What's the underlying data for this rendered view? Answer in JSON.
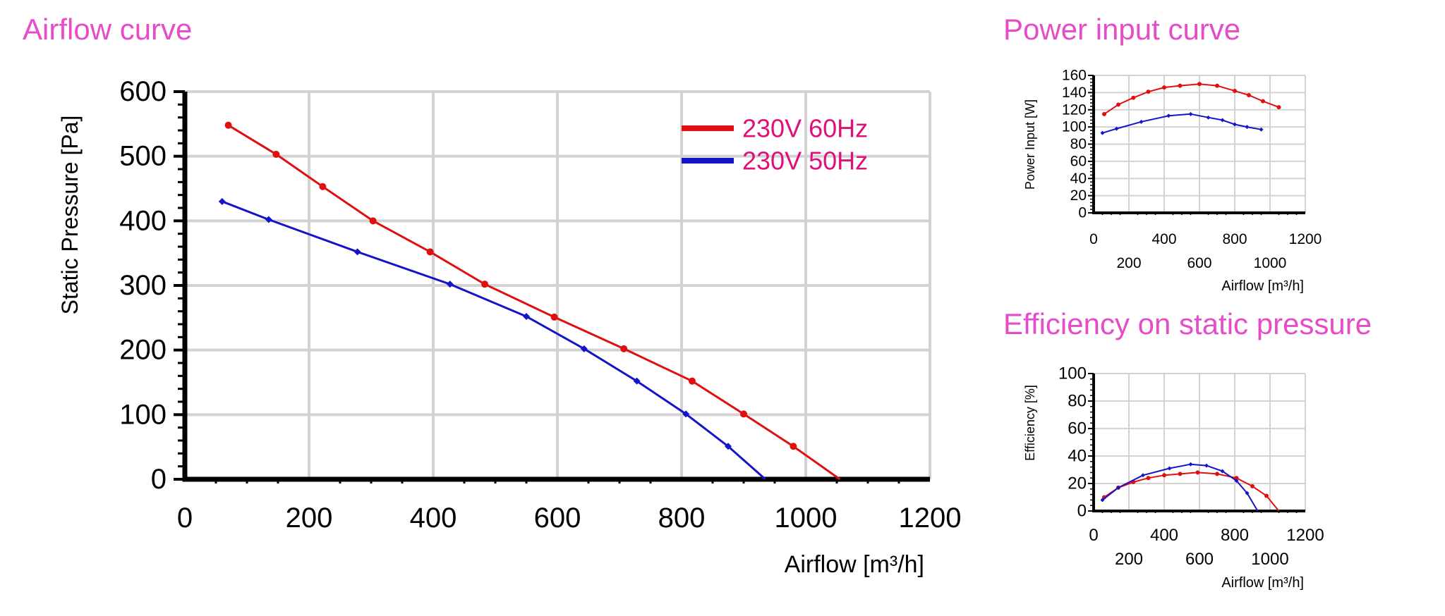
{
  "colors": {
    "title": "#e64bc8",
    "legend_text": "#e0107a",
    "series_60hz": "#e01010",
    "series_50hz": "#1414c8",
    "grid": "#d2d2d2"
  },
  "chart_data": [
    {
      "type": "line",
      "title": "Airflow curve",
      "xlabel": "Airflow [m³/h]",
      "ylabel": "Static Pressure [Pa]",
      "xlim": [
        0,
        1200
      ],
      "ylim": [
        0,
        600
      ],
      "xticks": [
        0,
        200,
        400,
        600,
        800,
        1000,
        1200
      ],
      "yticks": [
        0,
        100,
        200,
        300,
        400,
        500,
        600
      ],
      "grid": true,
      "legend_position": "top-right",
      "series": [
        {
          "name": "230V 60Hz",
          "color": "#e01010",
          "marker": "circle",
          "points": [
            [
              70,
              548
            ],
            [
              147,
              503
            ],
            [
              222,
              453
            ],
            [
              303,
              400
            ],
            [
              395,
              352
            ],
            [
              483,
              302
            ],
            [
              595,
              251
            ],
            [
              707,
              202
            ],
            [
              817,
              152
            ],
            [
              900,
              101
            ],
            [
              980,
              51
            ],
            [
              1055,
              0
            ]
          ]
        },
        {
          "name": "230V 50Hz",
          "color": "#1414c8",
          "marker": "diamond",
          "points": [
            [
              60,
              430
            ],
            [
              135,
              402
            ],
            [
              278,
              352
            ],
            [
              427,
              302
            ],
            [
              550,
              252
            ],
            [
              643,
              202
            ],
            [
              728,
              152
            ],
            [
              807,
              101
            ],
            [
              875,
              51
            ],
            [
              935,
              0
            ]
          ]
        }
      ]
    },
    {
      "type": "line",
      "title": "Power input curve",
      "xlabel": "Airflow [m³/h]",
      "ylabel": "Power Input [W]",
      "xlim": [
        0,
        1200
      ],
      "ylim": [
        0,
        160
      ],
      "xticks": [
        0,
        200,
        400,
        600,
        800,
        1000,
        1200
      ],
      "yticks": [
        0,
        20,
        40,
        60,
        80,
        100,
        120,
        140,
        160
      ],
      "grid": true,
      "series": [
        {
          "color": "#e01010",
          "marker": "circle",
          "points": [
            [
              60,
              115
            ],
            [
              140,
              126
            ],
            [
              225,
              134
            ],
            [
              310,
              141
            ],
            [
              400,
              146
            ],
            [
              490,
              148
            ],
            [
              600,
              150
            ],
            [
              700,
              148
            ],
            [
              800,
              142
            ],
            [
              880,
              137
            ],
            [
              960,
              130
            ],
            [
              1050,
              123
            ]
          ]
        },
        {
          "color": "#1414c8",
          "marker": "diamond",
          "points": [
            [
              50,
              93
            ],
            [
              130,
              98
            ],
            [
              270,
              106
            ],
            [
              425,
              113
            ],
            [
              550,
              115
            ],
            [
              650,
              111
            ],
            [
              730,
              108
            ],
            [
              800,
              103
            ],
            [
              870,
              100
            ],
            [
              950,
              97
            ]
          ]
        }
      ]
    },
    {
      "type": "line",
      "title": "Efficiency on static pressure",
      "xlabel": "Airflow [m³/h]",
      "ylabel": "Efficiency [%]",
      "xlim": [
        0,
        1200
      ],
      "ylim": [
        0,
        100
      ],
      "xticks": [
        0,
        200,
        400,
        600,
        800,
        1000,
        1200
      ],
      "yticks": [
        0,
        20,
        40,
        60,
        80,
        100
      ],
      "grid": true,
      "series": [
        {
          "color": "#e01010",
          "marker": "circle",
          "points": [
            [
              60,
              10
            ],
            [
              140,
              17
            ],
            [
              225,
              21
            ],
            [
              310,
              24
            ],
            [
              400,
              26
            ],
            [
              490,
              27
            ],
            [
              590,
              28
            ],
            [
              700,
              27
            ],
            [
              810,
              24
            ],
            [
              900,
              18
            ],
            [
              980,
              11
            ],
            [
              1050,
              0
            ]
          ]
        },
        {
          "color": "#1414c8",
          "marker": "diamond",
          "points": [
            [
              50,
              8
            ],
            [
              140,
              17
            ],
            [
              280,
              26
            ],
            [
              430,
              31
            ],
            [
              550,
              34
            ],
            [
              640,
              33
            ],
            [
              730,
              29
            ],
            [
              810,
              22
            ],
            [
              870,
              13
            ],
            [
              930,
              0
            ]
          ]
        }
      ]
    }
  ]
}
